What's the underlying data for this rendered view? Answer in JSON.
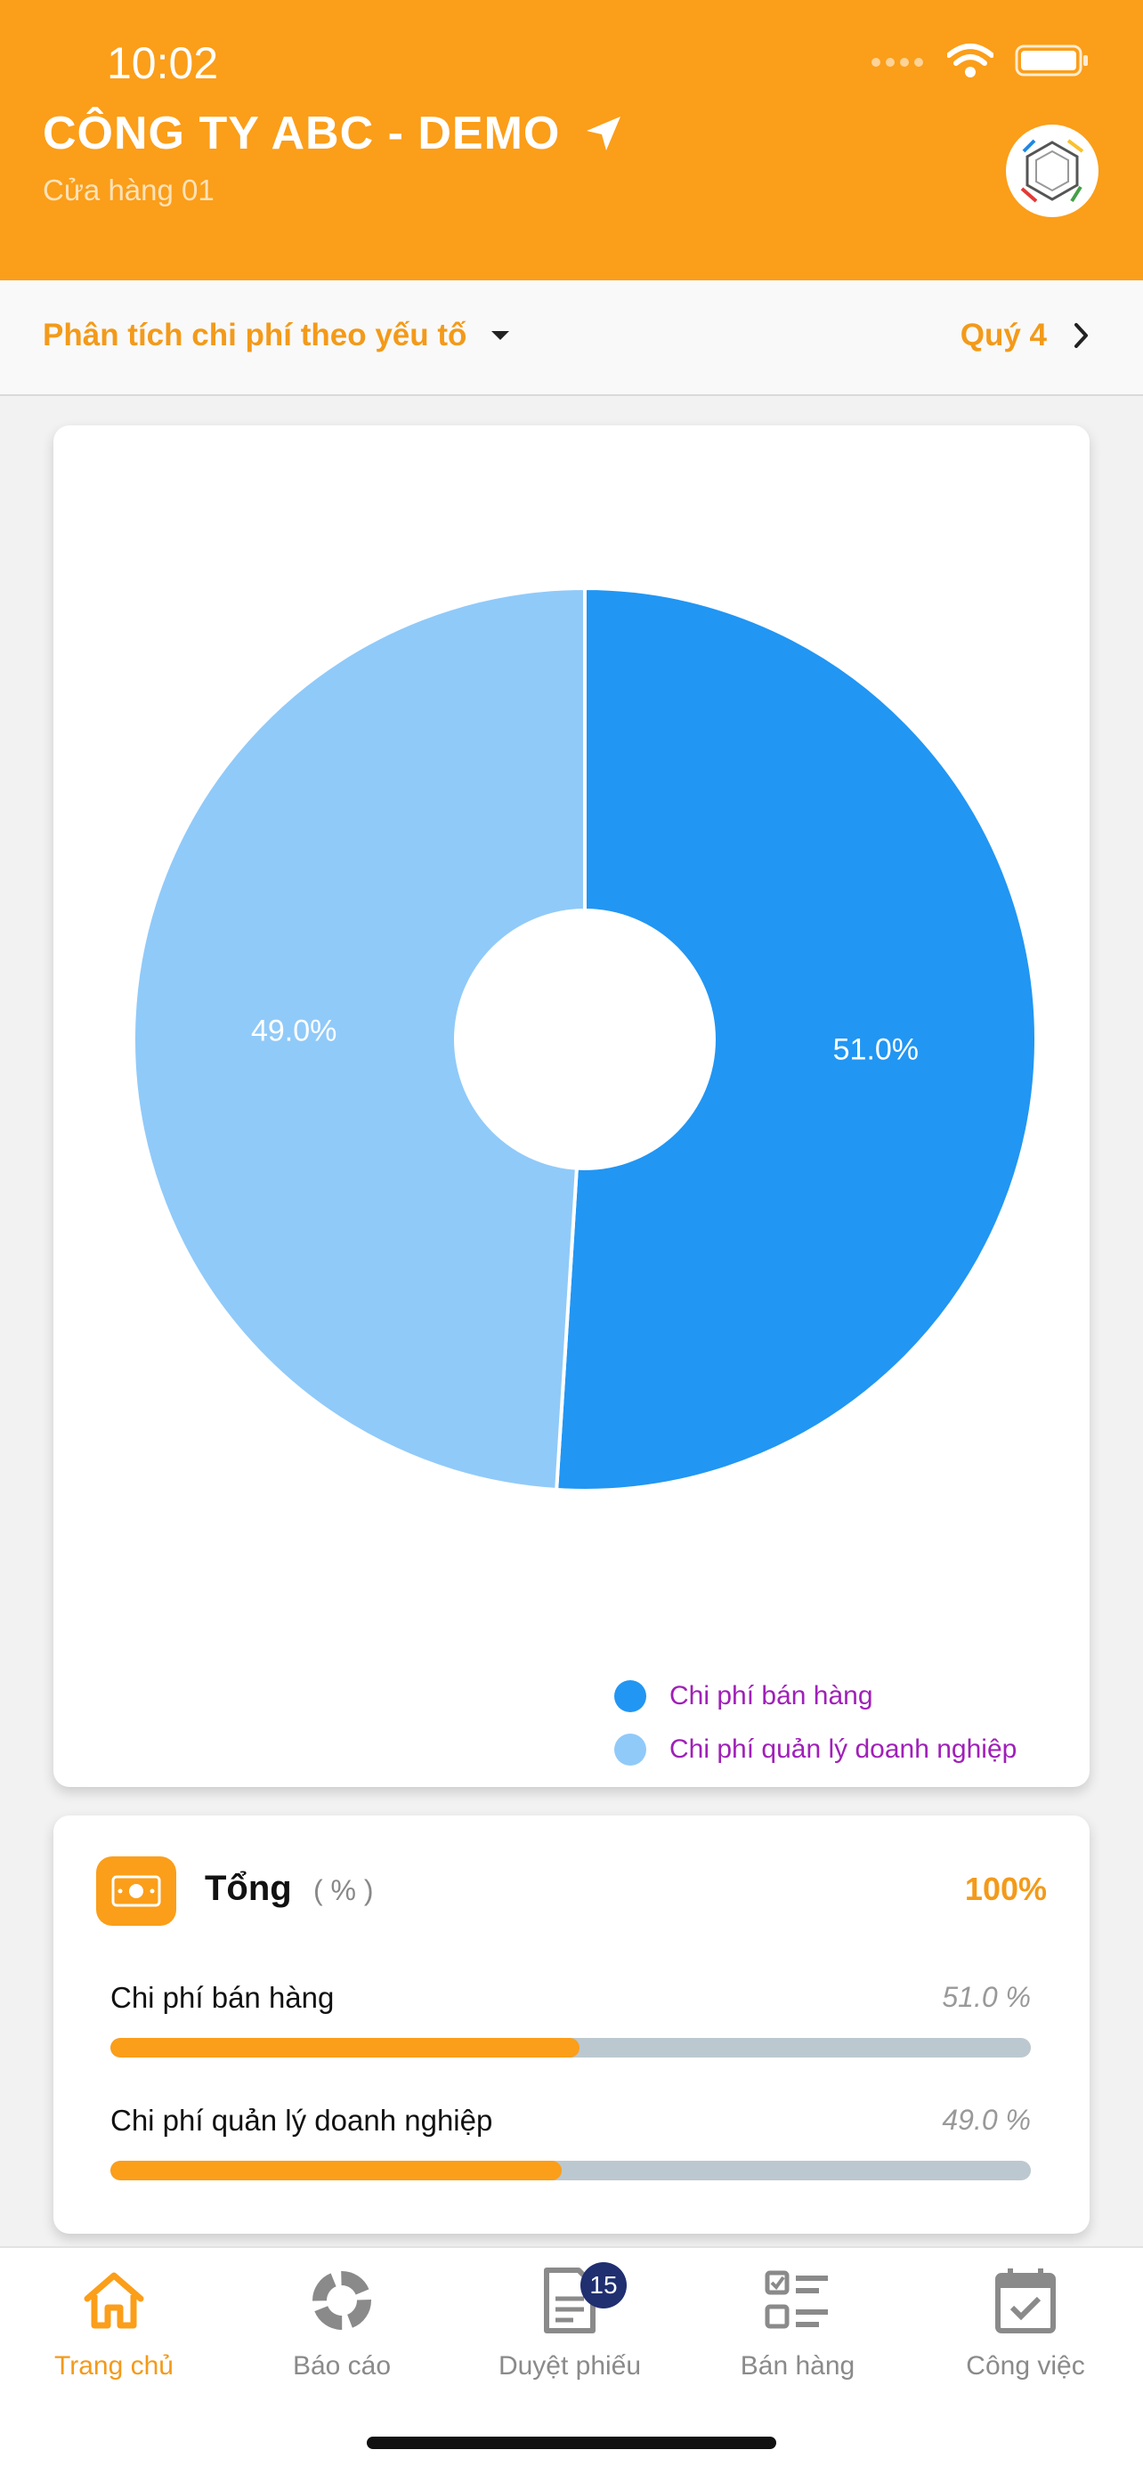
{
  "status": {
    "time": "10:02"
  },
  "header": {
    "title": "CÔNG TY ABC - DEMO",
    "subtitle": "Cửa hàng 01"
  },
  "filter": {
    "label": "Phân tích chi phí theo yếu tố",
    "period": "Quý 4"
  },
  "chart_data": {
    "type": "pie",
    "title": "",
    "categories": [
      "Chi phí bán hàng",
      "Chi phí quản lý doanh nghiệp"
    ],
    "values": [
      51.0,
      49.0
    ],
    "labels": [
      "51.0%",
      "49.0%"
    ],
    "colors": [
      "#2196f3",
      "#90caf9"
    ],
    "legend_position": "bottom-right"
  },
  "totals": {
    "title": "Tổng",
    "unit": "( % )",
    "value": "100%",
    "rows": [
      {
        "label": "Chi phí bán hàng",
        "value": "51.0 %",
        "fraction": 0.51
      },
      {
        "label": "Chi phí quản lý doanh nghiệp",
        "value": "49.0 %",
        "fraction": 0.49
      }
    ]
  },
  "tabs": [
    {
      "label": "Trang chủ",
      "icon": "home-icon",
      "active": true
    },
    {
      "label": "Báo cáo",
      "icon": "report-icon"
    },
    {
      "label": "Duyệt phiếu",
      "icon": "document-icon",
      "badge": "15"
    },
    {
      "label": "Bán hàng",
      "icon": "checklist-icon"
    },
    {
      "label": "Công việc",
      "icon": "calendar-icon"
    }
  ],
  "colors": {
    "accent": "#fb9e19",
    "accent_text": "#f39a1a"
  }
}
